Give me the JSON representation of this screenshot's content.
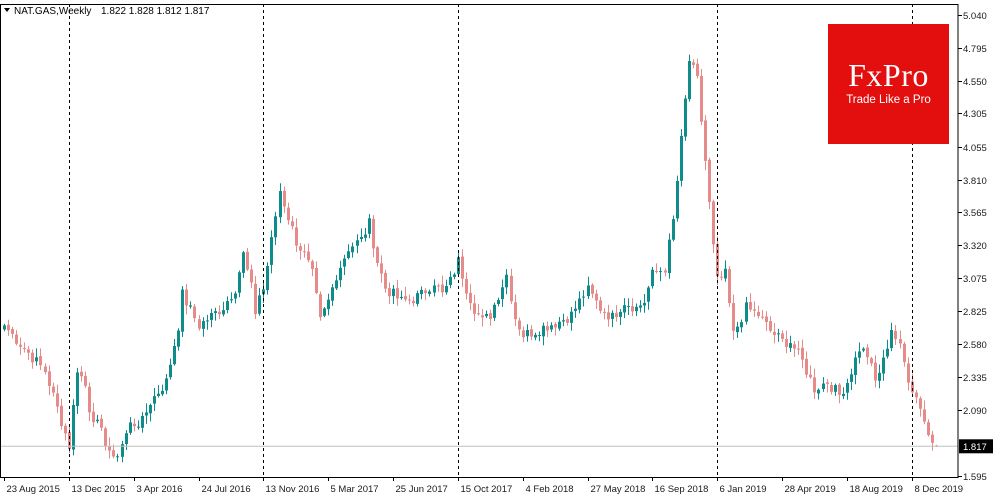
{
  "header": {
    "symbol": "NAT.GAS,Weekly",
    "ohlc": "1.822 1.828 1.812 1.817"
  },
  "logo": {
    "brand": "FxPro",
    "tagline": "Trade Like a Pro"
  },
  "colors": {
    "bull": "#0e8b8b",
    "bear": "#e68a8a",
    "grid": "#000000",
    "price_line": "#c0c0c0",
    "logo_bg": "#e30e0e"
  },
  "chart_data": {
    "type": "candlestick",
    "timeframe": "Weekly",
    "ylim": [
      1.595,
      5.04
    ],
    "y_ticks": [
      5.04,
      4.795,
      4.55,
      4.305,
      4.055,
      3.81,
      3.565,
      3.32,
      3.075,
      2.825,
      2.58,
      2.335,
      2.09,
      1.595
    ],
    "y_tick_labels": [
      "5.040",
      "4.795",
      "4.550",
      "4.305",
      "4.055",
      "3.810",
      "3.565",
      "3.320",
      "3.075",
      "2.825",
      "2.580",
      "2.335",
      "2.090",
      "1.595"
    ],
    "x_ticks": [
      "23 Aug 2015",
      "13 Dec 2015",
      "3 Apr 2016",
      "24 Jul 2016",
      "13 Nov 2016",
      "5 Mar 2017",
      "25 Jun 2017",
      "15 Oct 2017",
      "4 Feb 2018",
      "27 May 2018",
      "16 Sep 2018",
      "6 Jan 2019",
      "28 Apr 2019",
      "18 Aug 2019",
      "8 Dec 2019"
    ],
    "period_separators": [
      "13 Dec 2015",
      "13 Nov 2016",
      "15 Oct 2017",
      "6 Jan 2019",
      "8 Dec 2019"
    ],
    "current_price": "1.817",
    "grid": false,
    "close_anchors": [
      [
        "23 Aug 2015",
        2.72
      ],
      [
        "1 Nov 2015",
        2.38
      ],
      [
        "13 Dec 2015",
        1.82
      ],
      [
        "27 Dec 2015",
        2.4
      ],
      [
        "10 Jan 2016",
        2.27
      ],
      [
        "17 Jan 2016",
        2.1
      ],
      [
        "21 Feb 2016",
        1.79
      ],
      [
        "28 Feb 2016",
        1.7
      ],
      [
        "27 Mar 2016",
        1.98
      ],
      [
        "17 Apr 2016",
        2.0
      ],
      [
        "1 May 2016",
        2.15
      ],
      [
        "29 May 2016",
        2.3
      ],
      [
        "19 Jun 2016",
        2.72
      ],
      [
        "26 Jun 2016",
        2.95
      ],
      [
        "24 Jul 2016",
        2.72
      ],
      [
        "4 Sep 2016",
        2.86
      ],
      [
        "25 Sep 2016",
        3.0
      ],
      [
        "9 Oct 2016",
        3.25
      ],
      [
        "23 Oct 2016",
        3.0
      ],
      [
        "30 Oct 2016",
        2.82
      ],
      [
        "6 Nov 2016",
        2.95
      ],
      [
        "13 Nov 2016",
        2.99
      ],
      [
        "27 Nov 2016",
        3.35
      ],
      [
        "11 Dec 2016",
        3.73
      ],
      [
        "25 Dec 2016",
        3.53
      ],
      [
        "8 Jan 2017",
        3.35
      ],
      [
        "22 Jan 2017",
        3.25
      ],
      [
        "5 Feb 2017",
        3.1
      ],
      [
        "19 Feb 2017",
        2.75
      ],
      [
        "5 Mar 2017",
        2.9
      ],
      [
        "19 Mar 2017",
        3.1
      ],
      [
        "9 Apr 2017",
        3.3
      ],
      [
        "30 Apr 2017",
        3.36
      ],
      [
        "14 May 2017",
        3.48
      ],
      [
        "28 May 2017",
        3.2
      ],
      [
        "11 Jun 2017",
        3.0
      ],
      [
        "25 Jun 2017",
        2.95
      ],
      [
        "9 Jul 2017",
        2.9
      ],
      [
        "30 Jul 2017",
        2.92
      ],
      [
        "13 Aug 2017",
        2.95
      ],
      [
        "3 Sep 2017",
        3.05
      ],
      [
        "17 Sep 2017",
        2.95
      ],
      [
        "1 Oct 2017",
        3.05
      ],
      [
        "15 Oct 2017",
        3.2
      ],
      [
        "29 Oct 2017",
        3.0
      ],
      [
        "12 Nov 2017",
        2.85
      ],
      [
        "26 Nov 2017",
        2.75
      ],
      [
        "10 Dec 2017",
        2.8
      ],
      [
        "24 Dec 2017",
        2.95
      ],
      [
        "7 Jan 2018",
        3.1
      ],
      [
        "21 Jan 2018",
        2.78
      ],
      [
        "4 Feb 2018",
        2.65
      ],
      [
        "25 Feb 2018",
        2.68
      ],
      [
        "18 Mar 2018",
        2.72
      ],
      [
        "8 Apr 2018",
        2.75
      ],
      [
        "29 Apr 2018",
        2.8
      ],
      [
        "20 May 2018",
        2.95
      ],
      [
        "27 May 2018",
        2.98
      ],
      [
        "17 Jun 2018",
        2.85
      ],
      [
        "8 Jul 2018",
        2.78
      ],
      [
        "29 Jul 2018",
        2.9
      ],
      [
        "19 Aug 2018",
        2.85
      ],
      [
        "2 Sep 2018",
        2.9
      ],
      [
        "16 Sep 2018",
        3.1
      ],
      [
        "7 Oct 2018",
        3.15
      ],
      [
        "21 Oct 2018",
        3.5
      ],
      [
        "4 Nov 2018",
        4.1
      ],
      [
        "18 Nov 2018",
        4.7
      ],
      [
        "2 Dec 2018",
        4.55
      ],
      [
        "16 Dec 2018",
        3.95
      ],
      [
        "30 Dec 2018",
        3.3
      ],
      [
        "6 Jan 2019",
        3.05
      ],
      [
        "20 Jan 2019",
        3.1
      ],
      [
        "3 Feb 2019",
        2.65
      ],
      [
        "24 Feb 2019",
        2.85
      ],
      [
        "17 Mar 2019",
        2.8
      ],
      [
        "7 Apr 2019",
        2.68
      ],
      [
        "28 Apr 2019",
        2.6
      ],
      [
        "12 May 2019",
        2.6
      ],
      [
        "2 Jun 2019",
        2.45
      ],
      [
        "23 Jun 2019",
        2.25
      ],
      [
        "14 Jul 2019",
        2.3
      ],
      [
        "4 Aug 2019",
        2.2
      ],
      [
        "18 Aug 2019",
        2.3
      ],
      [
        "8 Sep 2019",
        2.55
      ],
      [
        "22 Sep 2019",
        2.5
      ],
      [
        "6 Oct 2019",
        2.3
      ],
      [
        "20 Oct 2019",
        2.45
      ],
      [
        "3 Nov 2019",
        2.7
      ],
      [
        "17 Nov 2019",
        2.55
      ],
      [
        "1 Dec 2019",
        2.33
      ],
      [
        "8 Dec 2019",
        2.25
      ],
      [
        "22 Dec 2019",
        2.12
      ],
      [
        "5 Jan 2020",
        1.9
      ],
      [
        "19 Jan 2020",
        1.817
      ]
    ]
  }
}
